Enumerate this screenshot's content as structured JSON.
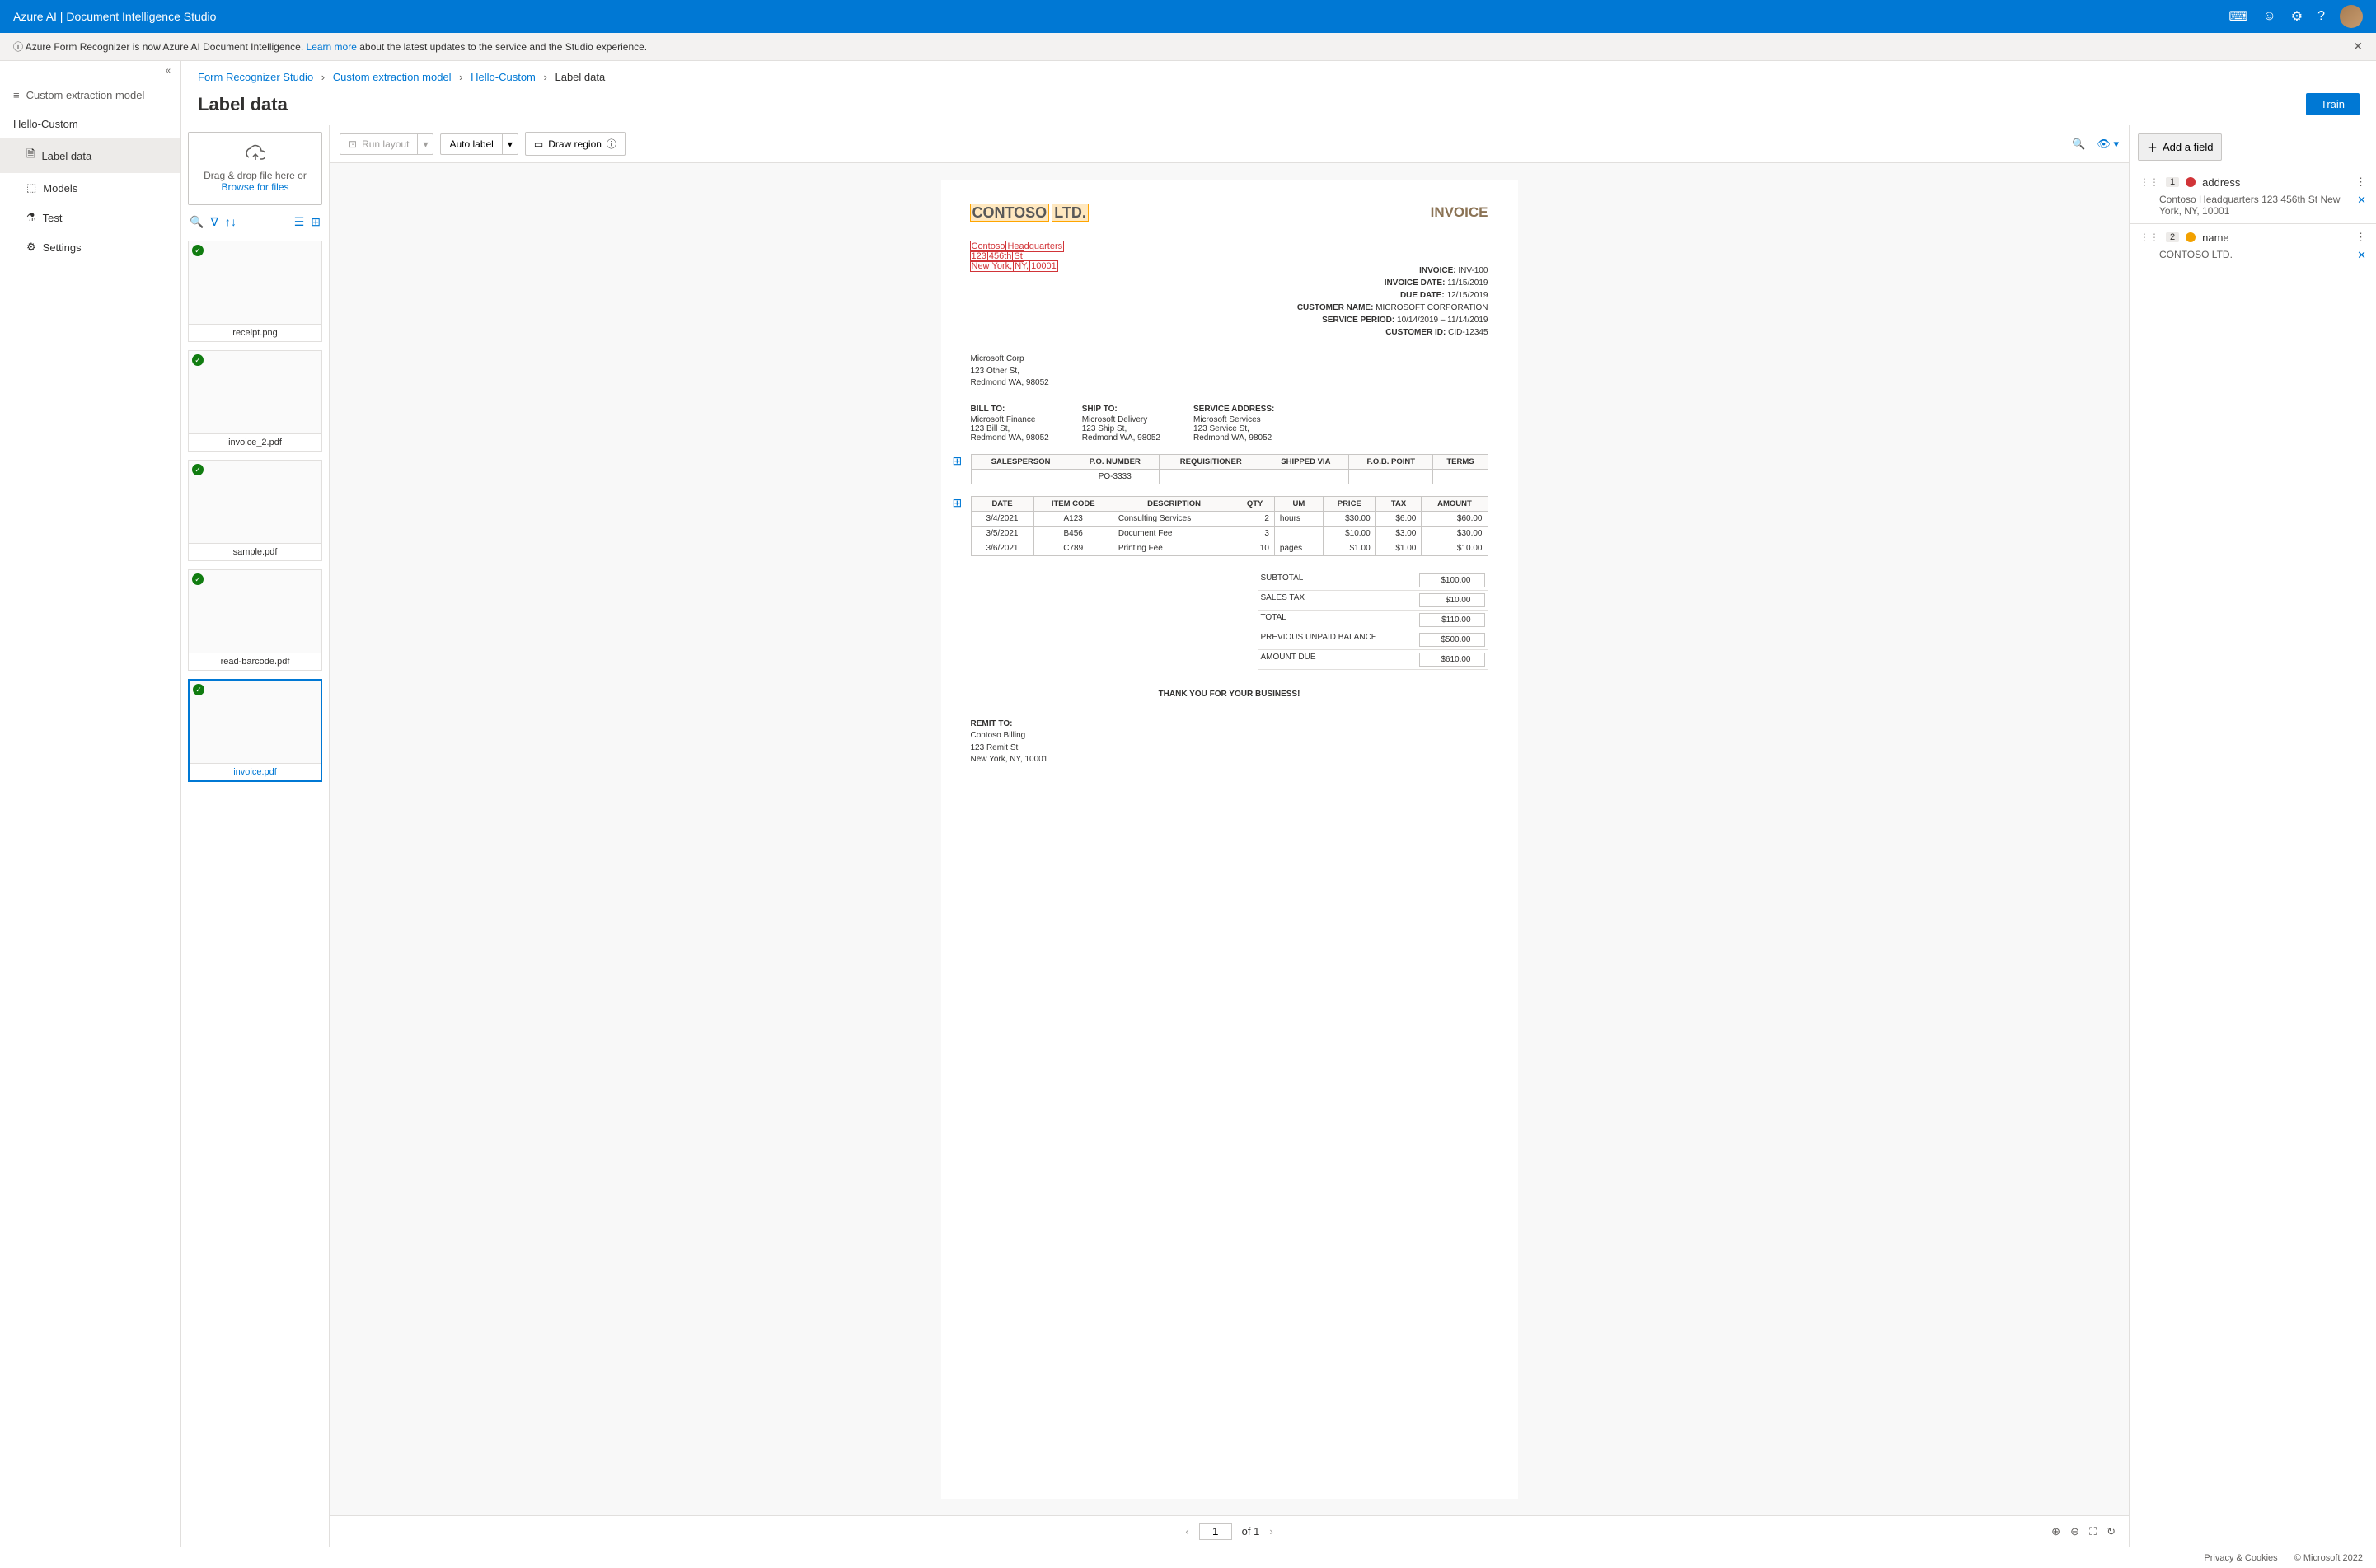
{
  "topbar": {
    "title": "Azure AI | Document Intelligence Studio"
  },
  "notice": {
    "text_before": "Azure Form Recognizer is now Azure AI Document Intelligence. ",
    "link": "Learn more",
    "text_after": " about the latest updates to the service and the Studio experience."
  },
  "leftnav": {
    "header": "Custom extraction model",
    "project": "Hello-Custom",
    "items": [
      {
        "label": "Label data",
        "active": true
      },
      {
        "label": "Models",
        "active": false
      },
      {
        "label": "Test",
        "active": false
      },
      {
        "label": "Settings",
        "active": false
      }
    ]
  },
  "breadcrumb": {
    "a": "Form Recognizer Studio",
    "b": "Custom extraction model",
    "c": "Hello-Custom",
    "d": "Label data"
  },
  "page": {
    "title": "Label data",
    "train": "Train"
  },
  "toolbar": {
    "run_layout": "Run layout",
    "auto_label": "Auto label",
    "draw_region": "Draw region"
  },
  "dropzone": {
    "line1": "Drag & drop file here or",
    "browse": "Browse for files"
  },
  "thumbs": [
    {
      "name": "receipt.png",
      "selected": false
    },
    {
      "name": "invoice_2.pdf",
      "selected": false
    },
    {
      "name": "sample.pdf",
      "selected": false
    },
    {
      "name": "read-barcode.pdf",
      "selected": false
    },
    {
      "name": "invoice.pdf",
      "selected": true
    }
  ],
  "invoice": {
    "company": "CONTOSO LTD.",
    "company_parts": {
      "a": "CONTOSO",
      "b": "LTD."
    },
    "title": "INVOICE",
    "addr_parts": {
      "l1a": "Contoso",
      "l1b": "Headquarters",
      "l2a": "123",
      "l2b": "456th",
      "l2c": "St",
      "l3a": "New",
      "l3b": "York,",
      "l3c": "NY,",
      "l3d": "10001"
    },
    "meta": {
      "inv_lbl": "INVOICE:",
      "inv": "INV-100",
      "date_lbl": "INVOICE DATE:",
      "date": "11/15/2019",
      "due_lbl": "DUE DATE:",
      "due": "12/15/2019",
      "cust_lbl": "CUSTOMER NAME:",
      "cust": "MICROSOFT CORPORATION",
      "period_lbl": "SERVICE PERIOD:",
      "period": "10/14/2019 – 11/14/2019",
      "cid_lbl": "CUSTOMER ID:",
      "cid": "CID-12345"
    },
    "from": {
      "name": "Microsoft Corp",
      "l1": "123 Other St,",
      "l2": "Redmond WA, 98052"
    },
    "billto": {
      "title": "BILL TO:",
      "name": "Microsoft Finance",
      "l1": "123 Bill St,",
      "l2": "Redmond WA, 98052"
    },
    "shipto": {
      "title": "SHIP TO:",
      "name": "Microsoft Delivery",
      "l1": "123 Ship St,",
      "l2": "Redmond WA, 98052"
    },
    "service": {
      "title": "SERVICE ADDRESS:",
      "name": "Microsoft Services",
      "l1": "123 Service St,",
      "l2": "Redmond WA, 98052"
    },
    "table1": {
      "headers": [
        "SALESPERSON",
        "P.O. NUMBER",
        "REQUISITIONER",
        "SHIPPED VIA",
        "F.O.B. POINT",
        "TERMS"
      ],
      "row": [
        "",
        "PO-3333",
        "",
        "",
        "",
        ""
      ]
    },
    "table2": {
      "headers": [
        "DATE",
        "ITEM CODE",
        "DESCRIPTION",
        "QTY",
        "UM",
        "PRICE",
        "TAX",
        "AMOUNT"
      ],
      "rows": [
        [
          "3/4/2021",
          "A123",
          "Consulting Services",
          "2",
          "hours",
          "$30.00",
          "$6.00",
          "$60.00"
        ],
        [
          "3/5/2021",
          "B456",
          "Document Fee",
          "3",
          "",
          "$10.00",
          "$3.00",
          "$30.00"
        ],
        [
          "3/6/2021",
          "C789",
          "Printing Fee",
          "10",
          "pages",
          "$1.00",
          "$1.00",
          "$10.00"
        ]
      ]
    },
    "totals": [
      {
        "label": "SUBTOTAL",
        "value": "$100.00"
      },
      {
        "label": "SALES TAX",
        "value": "$10.00"
      },
      {
        "label": "TOTAL",
        "value": "$110.00"
      },
      {
        "label": "PREVIOUS UNPAID BALANCE",
        "value": "$500.00"
      },
      {
        "label": "AMOUNT DUE",
        "value": "$610.00"
      }
    ],
    "thanks": "THANK YOU FOR YOUR BUSINESS!",
    "remit": {
      "title": "REMIT TO:",
      "name": "Contoso Billing",
      "l1": "123 Remit St",
      "l2": "New York, NY, 10001"
    }
  },
  "pager": {
    "page": "1",
    "of": "of 1"
  },
  "fields": {
    "add": "Add a field",
    "items": [
      {
        "num": "1",
        "name": "address",
        "color": "#d13438",
        "value": "Contoso Headquarters 123 456th St New York, NY, 10001"
      },
      {
        "num": "2",
        "name": "name",
        "color": "#f2a100",
        "value": "CONTOSO LTD."
      }
    ]
  },
  "footer": {
    "privacy": "Privacy & Cookies",
    "copyright": "© Microsoft 2022"
  }
}
